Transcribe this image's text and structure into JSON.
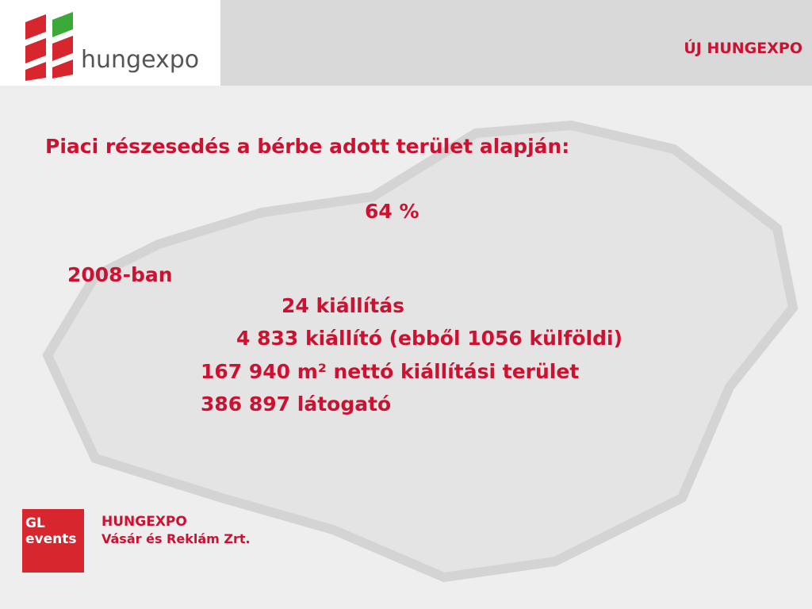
{
  "header": {
    "logo": "hungexpo",
    "title": "ÚJ HUNGEXPO"
  },
  "content": {
    "heading": "Piaci részesedés a bérbe adott terület alapján:",
    "share": "64 %",
    "year": "2008-ban",
    "lines": [
      "24 kiállítás",
      "4 833 kiállító (ebből 1056 külföldi)",
      "167 940 m² nettó kiállítási terület",
      "386 897 látogató"
    ]
  },
  "footer": {
    "badge": "GL events",
    "company": "HUNGEXPO",
    "company_sub": "Vásár és Reklám Zrt."
  }
}
